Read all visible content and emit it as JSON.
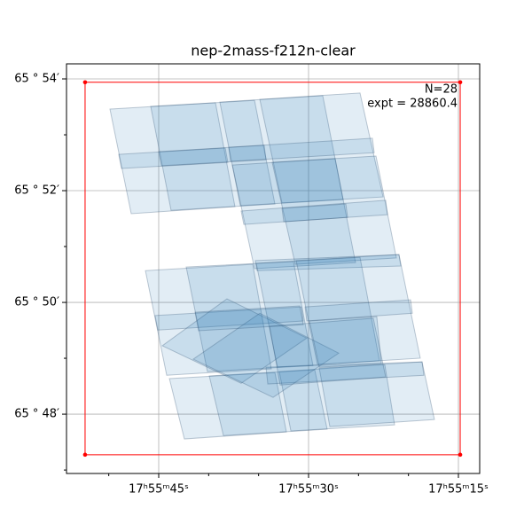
{
  "chart_data": {
    "type": "polygon",
    "title": "nep-2mass-f212n-clear",
    "annotations": [
      "N=28",
      "expt = 28860.4"
    ],
    "xlim": [
      54.23,
      12.87
    ],
    "ylim": [
      65.7823,
      65.9045
    ],
    "xticks": [
      {
        "value": 45,
        "label": "17ʰ55ᵐ45ˢ"
      },
      {
        "value": 30,
        "label": "17ʰ55ᵐ30ˢ"
      },
      {
        "value": 15,
        "label": "17ʰ55ᵐ15ˢ"
      }
    ],
    "yticks": [
      {
        "value": 65.9,
        "label": "65 ° 54′"
      },
      {
        "value": 65.86667,
        "label": "65 ° 52′"
      },
      {
        "value": 65.83333,
        "label": "65 ° 50′"
      },
      {
        "value": 65.8,
        "label": "65 ° 48′"
      }
    ],
    "xminorticks": [
      50,
      40,
      35,
      25,
      20
    ],
    "yminorticks": [
      65.88333,
      65.85,
      65.81667,
      65.78333
    ],
    "grid": true,
    "color": "#1f77b4",
    "outline_color": "#ff0000",
    "outline": {
      "ra": [
        52.37,
        14.82,
        14.82,
        52.37
      ],
      "dec": [
        65.899,
        65.899,
        65.7879,
        65.7879
      ]
    },
    "footprints": [
      {
        "ra": [
          49.88,
          39.32,
          37.37,
          47.75
        ],
        "dec": [
          65.891,
          65.8929,
          65.8619,
          65.8598
        ]
      },
      {
        "ra": [
          45.8,
          35.41,
          33.37,
          43.76
        ],
        "dec": [
          65.8918,
          65.8936,
          65.8627,
          65.8608
        ]
      },
      {
        "ra": [
          38.88,
          28.58,
          26.54,
          36.83
        ],
        "dec": [
          65.8931,
          65.895,
          65.864,
          65.8622
        ]
      },
      {
        "ra": [
          34.88,
          24.85,
          22.54,
          32.66
        ],
        "dec": [
          65.8939,
          65.8958,
          65.8648,
          65.863
        ]
      },
      {
        "ra": [
          49.0,
          38.34,
          38.08,
          48.73
        ],
        "dec": [
          65.8775,
          65.8794,
          65.8751,
          65.8733
        ]
      },
      {
        "ra": [
          45.0,
          34.44,
          34.26,
          44.73
        ],
        "dec": [
          65.8783,
          65.8802,
          65.8759,
          65.8741
        ]
      },
      {
        "ra": [
          37.99,
          23.61,
          23.43,
          37.81
        ],
        "dec": [
          65.8796,
          65.8823,
          65.878,
          65.8754
        ]
      },
      {
        "ra": [
          37.63,
          27.34,
          25.3,
          35.41
        ],
        "dec": [
          65.8743,
          65.8762,
          65.8452,
          65.8434
        ]
      },
      {
        "ra": [
          33.64,
          23.25,
          21.21,
          31.33
        ],
        "dec": [
          65.8751,
          65.877,
          65.8466,
          65.8447
        ]
      },
      {
        "ra": [
          36.75,
          22.28,
          22.1,
          36.48
        ],
        "dec": [
          65.8606,
          65.8638,
          65.8595,
          65.8566
        ]
      },
      {
        "ra": [
          32.66,
          26.27,
          26.09,
          32.48
        ],
        "dec": [
          65.8614,
          65.8627,
          65.8587,
          65.8574
        ]
      },
      {
        "ra": [
          35.33,
          20.95,
          20.77,
          35.15
        ],
        "dec": [
          65.8458,
          65.8476,
          65.8442,
          65.8428
        ]
      },
      {
        "ra": [
          46.33,
          35.59,
          33.73,
          44.2
        ],
        "dec": [
          65.8428,
          65.8447,
          65.8135,
          65.8116
        ]
      },
      {
        "ra": [
          42.25,
          31.51,
          29.56,
          40.12
        ],
        "dec": [
          65.8439,
          65.8455,
          65.8145,
          65.8127
        ]
      },
      {
        "ra": [
          35.24,
          24.85,
          22.9,
          33.11
        ],
        "dec": [
          65.845,
          65.8468,
          65.8159,
          65.814
        ]
      },
      {
        "ra": [
          31.24,
          20.95,
          18.82,
          29.11
        ],
        "dec": [
          65.8458,
          65.8476,
          65.8167,
          65.8148
        ]
      },
      {
        "ra": [
          45.36,
          30.71,
          30.53,
          45.09
        ],
        "dec": [
          65.8294,
          65.832,
          65.8278,
          65.8251
        ]
      },
      {
        "ra": [
          30.35,
          19.79,
          19.61,
          30.18
        ],
        "dec": [
          65.832,
          65.8341,
          65.8301,
          65.8278
        ]
      },
      {
        "ra": [
          43.93,
          33.37,
          32.22,
          42.43
        ],
        "dec": [
          65.8106,
          65.8124,
          65.7947,
          65.7926
        ]
      },
      {
        "ra": [
          39.94,
          29.38,
          28.14,
          38.52
        ],
        "dec": [
          65.8114,
          65.8132,
          65.7955,
          65.7936
        ]
      },
      {
        "ra": [
          32.93,
          22.37,
          21.39,
          31.77
        ],
        "dec": [
          65.8127,
          65.8148,
          65.7968,
          65.795
        ]
      },
      {
        "ra": [
          28.93,
          18.64,
          17.4,
          27.87
        ],
        "dec": [
          65.8137,
          65.8156,
          65.7984,
          65.7963
        ]
      },
      {
        "ra": [
          34.26,
          18.64,
          18.46,
          34.08
        ],
        "dec": [
          65.814,
          65.8156,
          65.8116,
          65.809
        ]
      },
      {
        "ra": [
          44.64,
          38.17,
          30.18,
          36.75
        ],
        "dec": [
          65.8204,
          65.8344,
          65.8227,
          65.8092
        ]
      },
      {
        "ra": [
          41.54,
          34.88,
          26.98,
          33.55
        ],
        "dec": [
          65.8164,
          65.8301,
          65.8182,
          65.805
        ]
      },
      {
        "ra": [
          33.9,
          23.52,
          22.28,
          32.84
        ],
        "dec": [
          65.8262,
          65.8286,
          65.8111,
          65.8087
        ]
      },
      {
        "ra": [
          41.36,
          30.89,
          30.53,
          41.01
        ],
        "dec": [
          65.8304,
          65.8323,
          65.8267,
          65.8249
        ]
      },
      {
        "ra": [
          29.91,
          23.17,
          22.72,
          28.93
        ],
        "dec": [
          65.8278,
          65.8291,
          65.8151,
          65.814
        ]
      }
    ]
  }
}
